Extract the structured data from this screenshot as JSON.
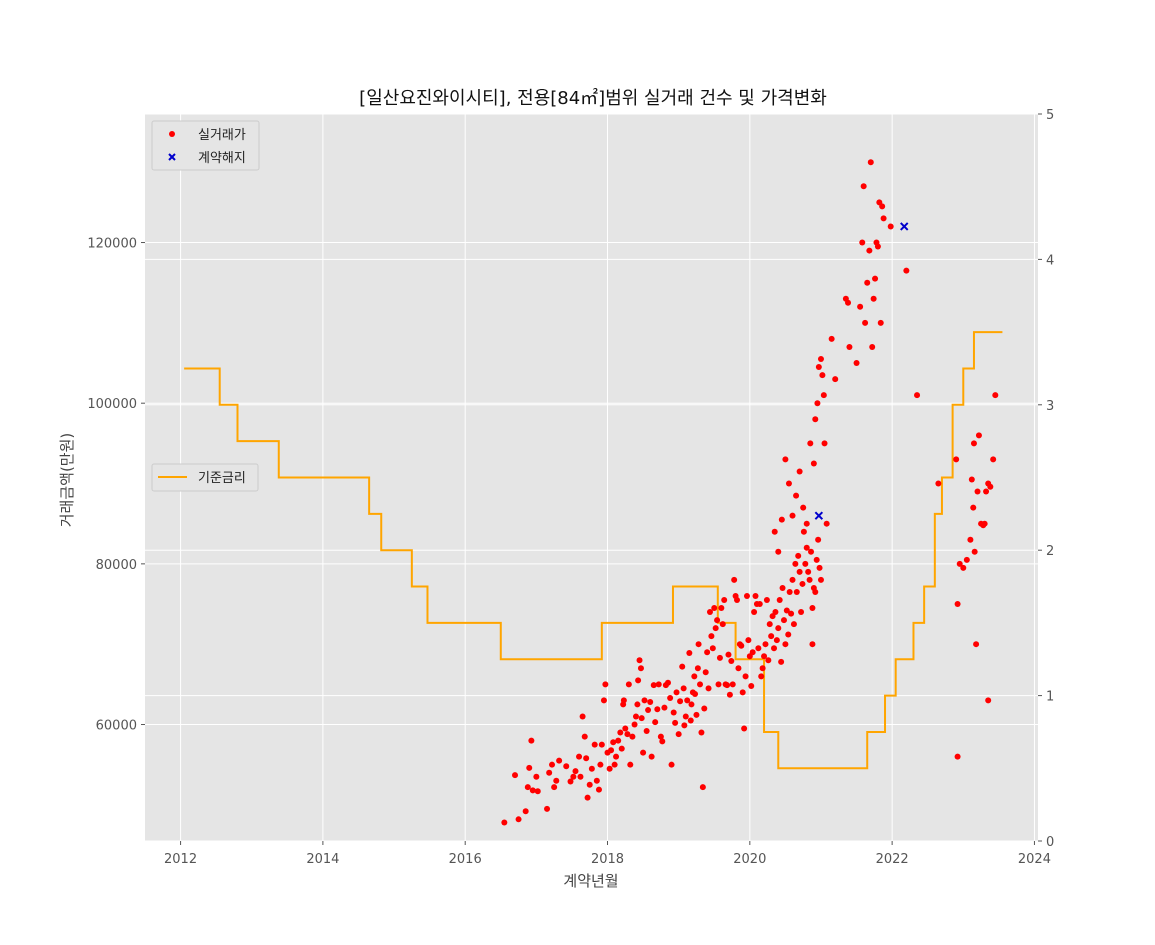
{
  "chart_data": {
    "type": "scatter",
    "title": "[일산요진와이시티], 전용[84㎡]범위 실거래 건수 및 가격변화",
    "xlabel": "계약년월",
    "ylabel": "거래금액(만원)",
    "xlim": [
      2011.5,
      2024.05
    ],
    "ylim": [
      45500,
      136000
    ],
    "y2lim": [
      0,
      5
    ],
    "x_ticks": [
      "2012",
      "2014",
      "2016",
      "2018",
      "2020",
      "2022",
      "2024"
    ],
    "y_ticks": [
      "60000",
      "80000",
      "100000",
      "120000"
    ],
    "y2_ticks": [
      "0",
      "1",
      "2",
      "3",
      "4",
      "5"
    ],
    "grid": true,
    "legend_upper": {
      "placement": "top-left",
      "entries": [
        "실거래가",
        "계약해지"
      ]
    },
    "legend_lower": {
      "placement": "center-left",
      "entries": [
        "기준금리"
      ]
    },
    "colors": {
      "trades": "#ff0000",
      "cancelled": "#0000cc",
      "rate": "#ffa500",
      "plot_bg": "#e5e5e5",
      "grid": "#ffffff"
    },
    "series": [
      {
        "name": "실거래가",
        "marker": "dot",
        "points": [
          [
            2016.55,
            47800
          ],
          [
            2016.7,
            53700
          ],
          [
            2016.75,
            48200
          ],
          [
            2016.85,
            49200
          ],
          [
            2016.88,
            52200
          ],
          [
            2016.9,
            54600
          ],
          [
            2016.93,
            58000
          ],
          [
            2016.95,
            51800
          ],
          [
            2017.0,
            53500
          ],
          [
            2017.02,
            51700
          ],
          [
            2017.15,
            49500
          ],
          [
            2017.18,
            54000
          ],
          [
            2017.22,
            55000
          ],
          [
            2017.25,
            52200
          ],
          [
            2017.28,
            53000
          ],
          [
            2017.32,
            55500
          ],
          [
            2017.42,
            54800
          ],
          [
            2017.48,
            52900
          ],
          [
            2017.52,
            53500
          ],
          [
            2017.55,
            54200
          ],
          [
            2017.6,
            56000
          ],
          [
            2017.62,
            53500
          ],
          [
            2017.65,
            61000
          ],
          [
            2017.68,
            58500
          ],
          [
            2017.7,
            55800
          ],
          [
            2017.72,
            50900
          ],
          [
            2017.75,
            52500
          ],
          [
            2017.78,
            54500
          ],
          [
            2017.82,
            57500
          ],
          [
            2017.85,
            53000
          ],
          [
            2017.88,
            51900
          ],
          [
            2017.9,
            55000
          ],
          [
            2017.92,
            57500
          ],
          [
            2017.95,
            63000
          ],
          [
            2017.97,
            65000
          ],
          [
            2018.0,
            56500
          ],
          [
            2018.03,
            54500
          ],
          [
            2018.05,
            56800
          ],
          [
            2018.08,
            57800
          ],
          [
            2018.1,
            55000
          ],
          [
            2018.12,
            56000
          ],
          [
            2018.15,
            58000
          ],
          [
            2018.18,
            59000
          ],
          [
            2018.2,
            57000
          ],
          [
            2018.22,
            62500
          ],
          [
            2018.23,
            63000
          ],
          [
            2018.25,
            59500
          ],
          [
            2018.28,
            58800
          ],
          [
            2018.3,
            65000
          ],
          [
            2018.32,
            55000
          ],
          [
            2018.35,
            58500
          ],
          [
            2018.38,
            60000
          ],
          [
            2018.4,
            61000
          ],
          [
            2018.42,
            62500
          ],
          [
            2018.43,
            65500
          ],
          [
            2018.45,
            68000
          ],
          [
            2018.47,
            67000
          ],
          [
            2018.48,
            60800
          ],
          [
            2018.5,
            56500
          ],
          [
            2018.52,
            63000
          ],
          [
            2018.55,
            59200
          ],
          [
            2018.57,
            61800
          ],
          [
            2018.6,
            62800
          ],
          [
            2018.62,
            56000
          ],
          [
            2018.65,
            64900
          ],
          [
            2018.67,
            60300
          ],
          [
            2018.7,
            61900
          ],
          [
            2018.72,
            65000
          ],
          [
            2018.75,
            58500
          ],
          [
            2018.77,
            57900
          ],
          [
            2018.8,
            62100
          ],
          [
            2018.82,
            64900
          ],
          [
            2018.85,
            65200
          ],
          [
            2018.88,
            63300
          ],
          [
            2018.9,
            55000
          ],
          [
            2018.93,
            61500
          ],
          [
            2018.95,
            60200
          ],
          [
            2018.97,
            64000
          ],
          [
            2019.0,
            58800
          ],
          [
            2019.02,
            62900
          ],
          [
            2019.05,
            67200
          ],
          [
            2019.07,
            64500
          ],
          [
            2019.08,
            59900
          ],
          [
            2019.1,
            61000
          ],
          [
            2019.12,
            63000
          ],
          [
            2019.15,
            68900
          ],
          [
            2019.17,
            60500
          ],
          [
            2019.18,
            62500
          ],
          [
            2019.2,
            64000
          ],
          [
            2019.22,
            66000
          ],
          [
            2019.23,
            63800
          ],
          [
            2019.25,
            61200
          ],
          [
            2019.27,
            67000
          ],
          [
            2019.28,
            70000
          ],
          [
            2019.3,
            65000
          ],
          [
            2019.32,
            59000
          ],
          [
            2019.34,
            52200
          ],
          [
            2019.36,
            62000
          ],
          [
            2019.38,
            66500
          ],
          [
            2019.4,
            69000
          ],
          [
            2019.42,
            64500
          ],
          [
            2019.44,
            74000
          ],
          [
            2019.46,
            71000
          ],
          [
            2019.48,
            69500
          ],
          [
            2019.5,
            74500
          ],
          [
            2019.52,
            72000
          ],
          [
            2019.54,
            73000
          ],
          [
            2019.56,
            65000
          ],
          [
            2019.58,
            68300
          ],
          [
            2019.6,
            74500
          ],
          [
            2019.62,
            72500
          ],
          [
            2019.64,
            75500
          ],
          [
            2019.66,
            65000
          ],
          [
            2019.68,
            64900
          ],
          [
            2019.7,
            68700
          ],
          [
            2019.72,
            63700
          ],
          [
            2019.74,
            67900
          ],
          [
            2019.76,
            65000
          ],
          [
            2019.78,
            78000
          ],
          [
            2019.8,
            76000
          ],
          [
            2019.82,
            75500
          ],
          [
            2019.84,
            67000
          ],
          [
            2019.86,
            70000
          ],
          [
            2019.88,
            69800
          ],
          [
            2019.9,
            64000
          ],
          [
            2019.92,
            59500
          ],
          [
            2019.94,
            66000
          ],
          [
            2019.96,
            76000
          ],
          [
            2019.98,
            70500
          ],
          [
            2020.0,
            68500
          ],
          [
            2020.02,
            64800
          ],
          [
            2020.04,
            69000
          ],
          [
            2020.06,
            74000
          ],
          [
            2020.08,
            76000
          ],
          [
            2020.1,
            75000
          ],
          [
            2020.12,
            69500
          ],
          [
            2020.14,
            75000
          ],
          [
            2020.16,
            66000
          ],
          [
            2020.18,
            67000
          ],
          [
            2020.2,
            68500
          ],
          [
            2020.22,
            70000
          ],
          [
            2020.24,
            75500
          ],
          [
            2020.26,
            68000
          ],
          [
            2020.28,
            72500
          ],
          [
            2020.3,
            71000
          ],
          [
            2020.32,
            73500
          ],
          [
            2020.34,
            69500
          ],
          [
            2020.36,
            74000
          ],
          [
            2020.38,
            70500
          ],
          [
            2020.4,
            72000
          ],
          [
            2020.42,
            75500
          ],
          [
            2020.44,
            67800
          ],
          [
            2020.46,
            77000
          ],
          [
            2020.48,
            73000
          ],
          [
            2020.5,
            70000
          ],
          [
            2020.52,
            74200
          ],
          [
            2020.54,
            71200
          ],
          [
            2020.56,
            76500
          ],
          [
            2020.58,
            73800
          ],
          [
            2020.6,
            78000
          ],
          [
            2020.62,
            72500
          ],
          [
            2020.64,
            80000
          ],
          [
            2020.66,
            76500
          ],
          [
            2020.68,
            81000
          ],
          [
            2020.7,
            79000
          ],
          [
            2020.72,
            74000
          ],
          [
            2020.74,
            77500
          ],
          [
            2020.76,
            84000
          ],
          [
            2020.78,
            80000
          ],
          [
            2020.8,
            82000
          ],
          [
            2020.82,
            79000
          ],
          [
            2020.84,
            78000
          ],
          [
            2020.86,
            81500
          ],
          [
            2020.88,
            74500
          ],
          [
            2020.9,
            77000
          ],
          [
            2020.92,
            76500
          ],
          [
            2020.94,
            80500
          ],
          [
            2020.96,
            83000
          ],
          [
            2020.98,
            79500
          ],
          [
            2021.0,
            78000
          ],
          [
            2020.35,
            84000
          ],
          [
            2020.4,
            81500
          ],
          [
            2020.45,
            85500
          ],
          [
            2020.5,
            93000
          ],
          [
            2020.55,
            90000
          ],
          [
            2020.6,
            86000
          ],
          [
            2020.65,
            88500
          ],
          [
            2020.7,
            91500
          ],
          [
            2020.75,
            87000
          ],
          [
            2020.8,
            85000
          ],
          [
            2020.85,
            95000
          ],
          [
            2020.9,
            92500
          ],
          [
            2020.92,
            98000
          ],
          [
            2020.95,
            100000
          ],
          [
            2020.97,
            104500
          ],
          [
            2021.0,
            105500
          ],
          [
            2021.02,
            103500
          ],
          [
            2021.04,
            101000
          ],
          [
            2021.05,
            95000
          ],
          [
            2021.08,
            85000
          ],
          [
            2020.88,
            70000
          ],
          [
            2021.15,
            108000
          ],
          [
            2021.2,
            103000
          ],
          [
            2021.35,
            113000
          ],
          [
            2021.38,
            112500
          ],
          [
            2021.4,
            107000
          ],
          [
            2021.5,
            105000
          ],
          [
            2021.55,
            112000
          ],
          [
            2021.58,
            120000
          ],
          [
            2021.6,
            127000
          ],
          [
            2021.62,
            110000
          ],
          [
            2021.65,
            115000
          ],
          [
            2021.68,
            119000
          ],
          [
            2021.7,
            130000
          ],
          [
            2021.72,
            107000
          ],
          [
            2021.74,
            113000
          ],
          [
            2021.76,
            115500
          ],
          [
            2021.78,
            120000
          ],
          [
            2021.8,
            119500
          ],
          [
            2021.82,
            125000
          ],
          [
            2021.84,
            110000
          ],
          [
            2021.86,
            124500
          ],
          [
            2021.88,
            123000
          ],
          [
            2021.98,
            122000
          ],
          [
            2022.2,
            116500
          ],
          [
            2022.35,
            101000
          ],
          [
            2022.65,
            90000
          ],
          [
            2022.9,
            93000
          ],
          [
            2022.92,
            75000
          ],
          [
            2022.95,
            80000
          ],
          [
            2022.92,
            56000
          ],
          [
            2023.0,
            79500
          ],
          [
            2023.05,
            80500
          ],
          [
            2023.1,
            83000
          ],
          [
            2023.12,
            90500
          ],
          [
            2023.14,
            87000
          ],
          [
            2023.15,
            95000
          ],
          [
            2023.16,
            81500
          ],
          [
            2023.18,
            70000
          ],
          [
            2023.2,
            89000
          ],
          [
            2023.22,
            96000
          ],
          [
            2023.25,
            85000
          ],
          [
            2023.28,
            84800
          ],
          [
            2023.3,
            85000
          ],
          [
            2023.32,
            89000
          ],
          [
            2023.35,
            90000
          ],
          [
            2023.38,
            89600
          ],
          [
            2023.35,
            63000
          ],
          [
            2023.42,
            93000
          ],
          [
            2023.45,
            101000
          ]
        ]
      },
      {
        "name": "계약해지",
        "marker": "x",
        "points": [
          [
            2020.97,
            86000
          ],
          [
            2022.17,
            122000
          ]
        ]
      },
      {
        "name": "기준금리",
        "axis": "right",
        "type": "step",
        "points": [
          [
            2012.05,
            3.25
          ],
          [
            2012.55,
            3.0
          ],
          [
            2012.8,
            2.75
          ],
          [
            2013.38,
            2.5
          ],
          [
            2014.65,
            2.25
          ],
          [
            2014.82,
            2.0
          ],
          [
            2015.25,
            1.75
          ],
          [
            2015.47,
            1.5
          ],
          [
            2016.5,
            1.25
          ],
          [
            2017.92,
            1.5
          ],
          [
            2018.92,
            1.75
          ],
          [
            2019.55,
            1.5
          ],
          [
            2019.8,
            1.25
          ],
          [
            2020.2,
            0.75
          ],
          [
            2020.4,
            0.5
          ],
          [
            2021.65,
            0.75
          ],
          [
            2021.9,
            1.0
          ],
          [
            2022.05,
            1.25
          ],
          [
            2022.3,
            1.5
          ],
          [
            2022.45,
            1.75
          ],
          [
            2022.6,
            2.25
          ],
          [
            2022.7,
            2.5
          ],
          [
            2022.85,
            3.0
          ],
          [
            2023.0,
            3.25
          ],
          [
            2023.15,
            3.5
          ],
          [
            2023.55,
            3.5
          ]
        ]
      }
    ]
  }
}
